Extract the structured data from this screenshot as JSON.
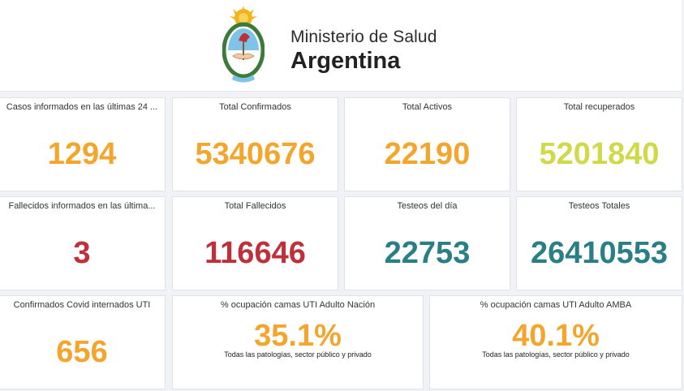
{
  "header": {
    "ministry": "Ministerio de Salud",
    "country": "Argentina",
    "logo_icon": "argentina-coat-of-arms-icon"
  },
  "colors": {
    "orange": "#f4a52d",
    "lime": "#cfd94a",
    "red": "#c0303a",
    "teal": "#2a7f86"
  },
  "cards": {
    "cases_24h": {
      "label": "Casos informados en las últimas 24 ...",
      "value": "1294"
    },
    "total_confirmed": {
      "label": "Total Confirmados",
      "value": "5340676"
    },
    "total_active": {
      "label": "Total Activos",
      "value": "22190"
    },
    "total_recovered": {
      "label": "Total recuperados",
      "value": "5201840"
    },
    "deaths_24h": {
      "label": "Fallecidos informados en las última...",
      "value": "3"
    },
    "total_deaths": {
      "label": "Total Fallecidos",
      "value": "116646"
    },
    "tests_day": {
      "label": "Testeos del día",
      "value": "22753"
    },
    "tests_total": {
      "label": "Testeos Totales",
      "value": "26410553"
    },
    "icu_covid": {
      "label": "Confirmados Covid internados UTI",
      "value": "656"
    },
    "icu_nation": {
      "label": "% ocupación camas UTI Adulto Nación",
      "value": "35.1%",
      "note": "Todas las patologías, sector público y privado"
    },
    "icu_amba": {
      "label": "% ocupación camas UTI Adulto AMBA",
      "value": "40.1%",
      "note": "Todas las patologías, sector público y privado"
    }
  }
}
